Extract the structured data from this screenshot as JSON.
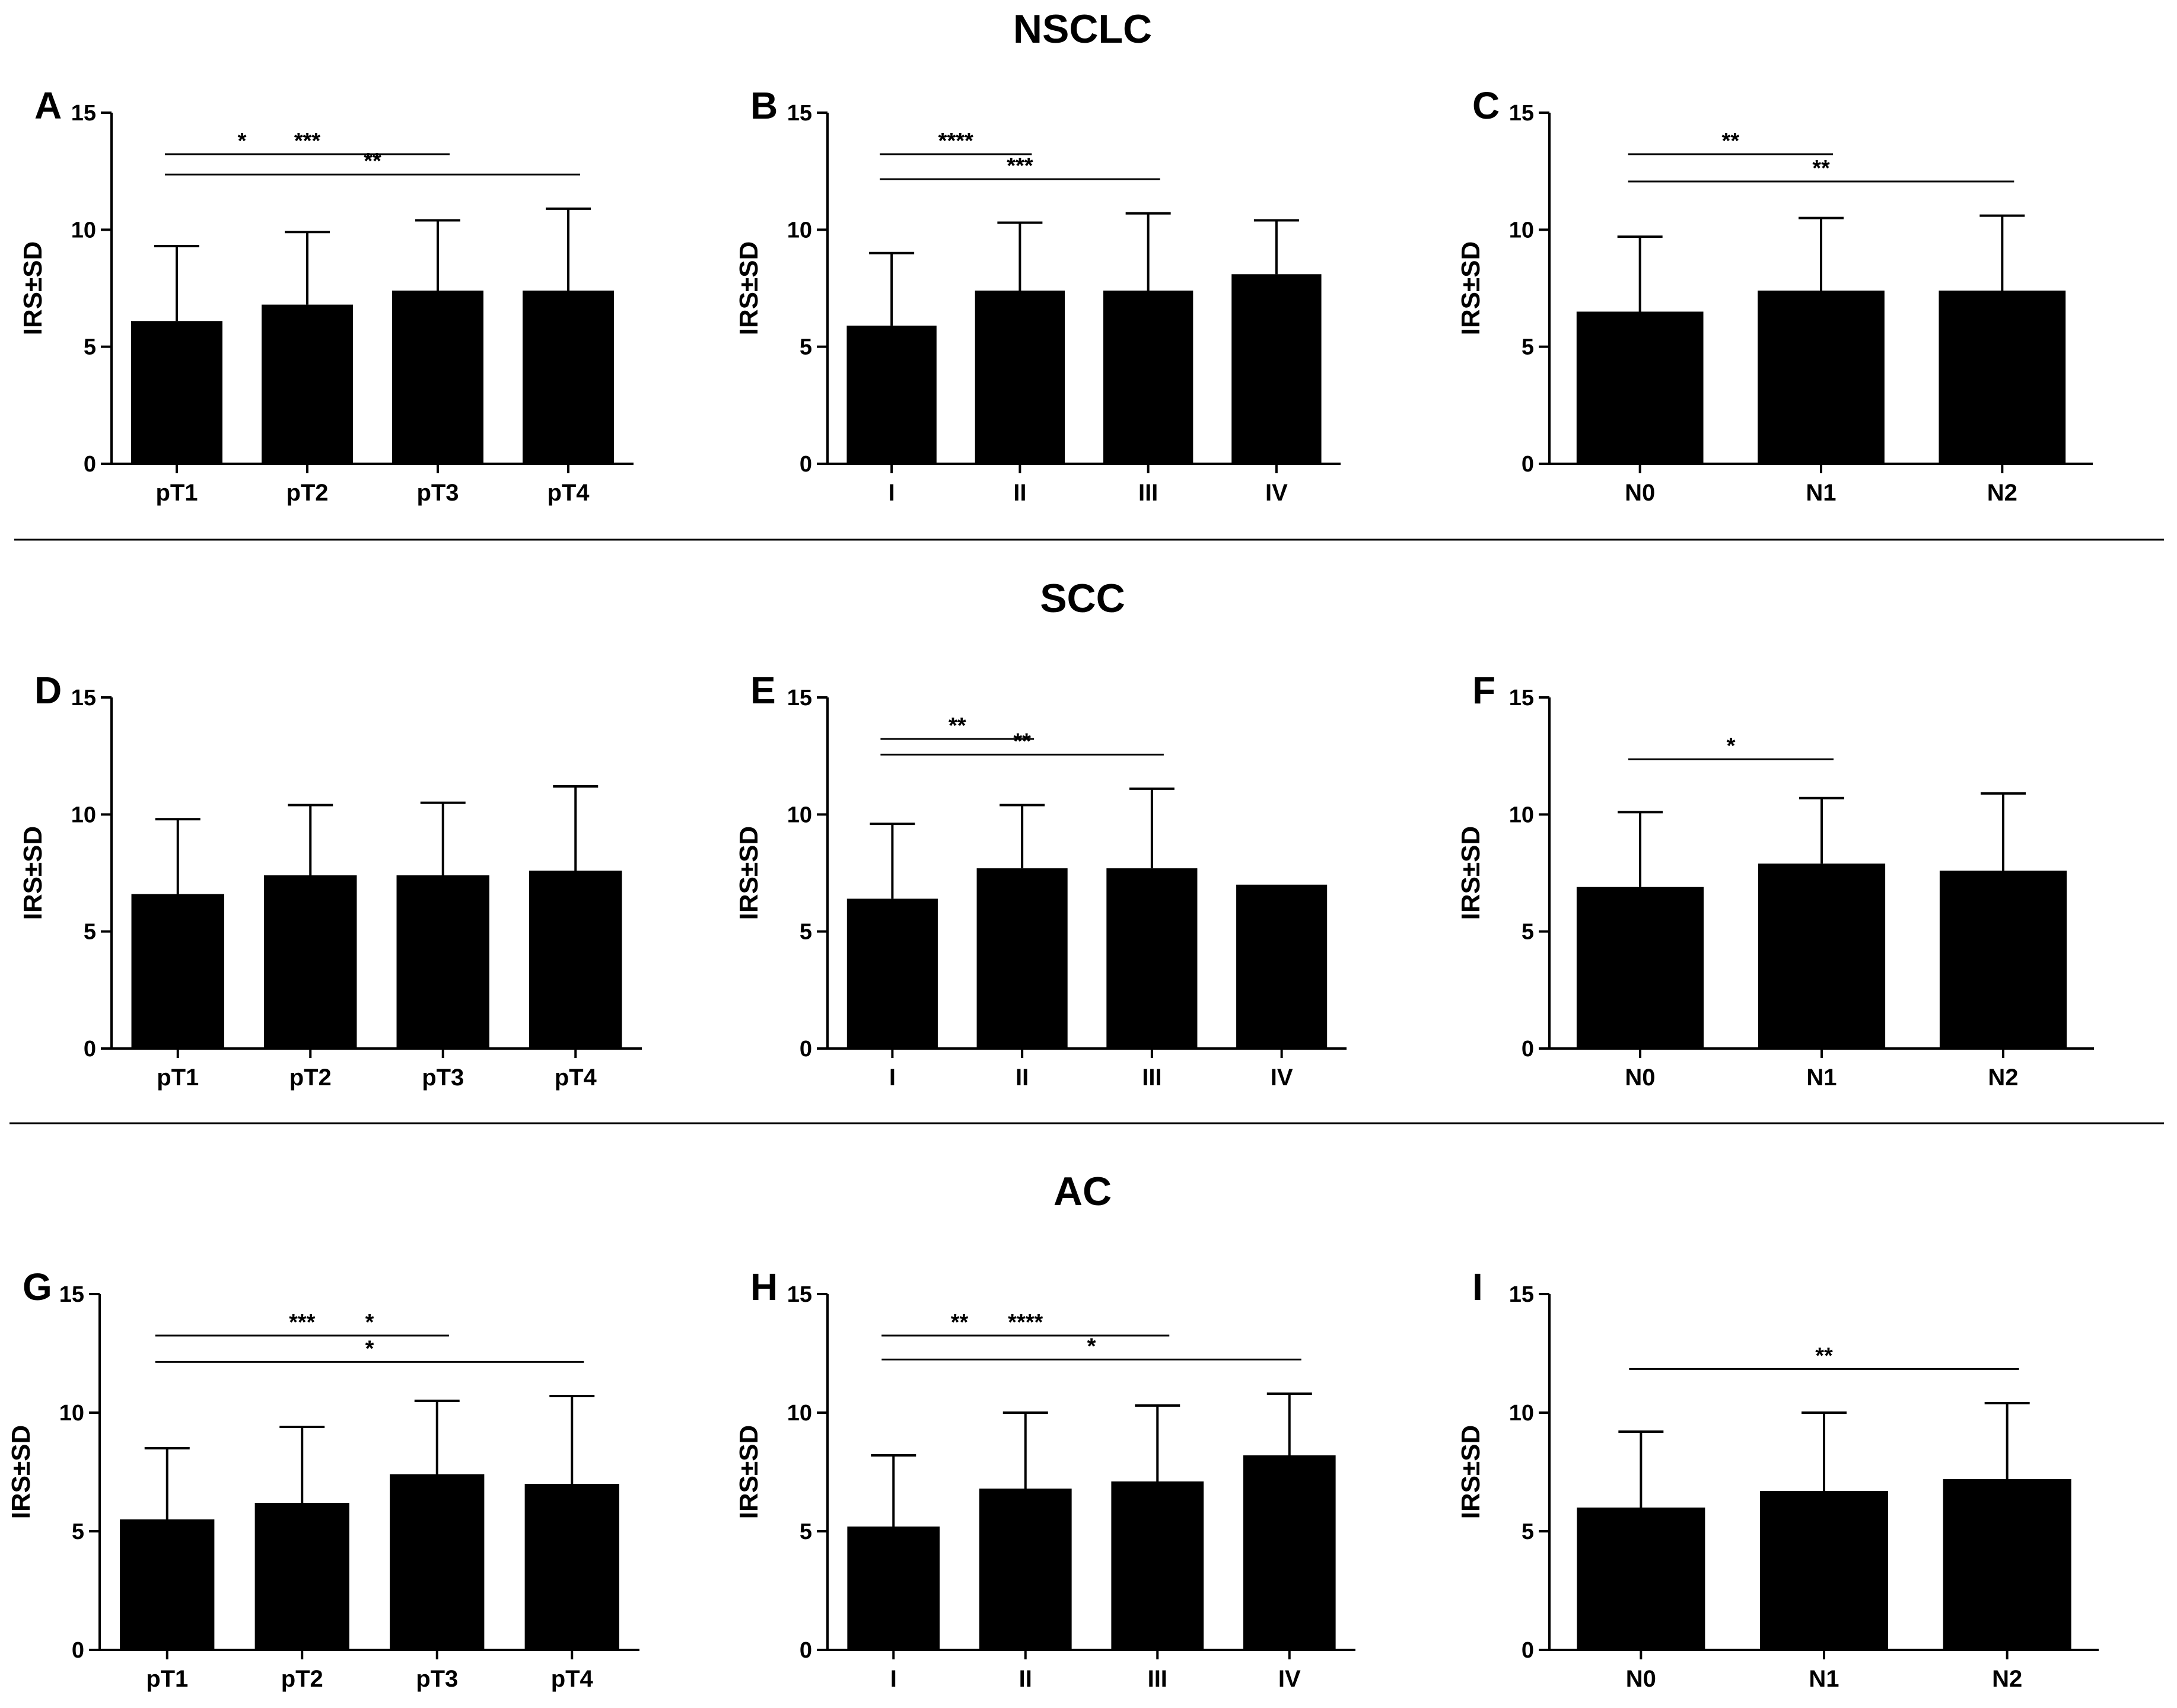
{
  "sections": [
    {
      "title": "NSCLC"
    },
    {
      "title": "SCC"
    },
    {
      "title": "AC"
    }
  ],
  "chart_data": [
    {
      "panel": "A",
      "section": "NSCLC",
      "type": "bar",
      "ylabel": "IRS±SD",
      "ylim": [
        0,
        15
      ],
      "yticks": [
        0,
        5,
        10,
        15
      ],
      "categories": [
        "pT1",
        "pT2",
        "pT3",
        "pT4"
      ],
      "values": [
        6.1,
        6.8,
        7.4,
        7.4
      ],
      "sd": [
        3.2,
        3.1,
        3.0,
        3.5
      ],
      "significance": [
        {
          "from": 0,
          "to": 1,
          "label": "*"
        },
        {
          "from": 0,
          "to": 2,
          "label": "***"
        },
        {
          "from": 0,
          "to": 3,
          "label": "**"
        }
      ]
    },
    {
      "panel": "B",
      "section": "NSCLC",
      "type": "bar",
      "ylabel": "IRS±SD",
      "ylim": [
        0,
        15
      ],
      "yticks": [
        0,
        5,
        10,
        15
      ],
      "categories": [
        "I",
        "II",
        "III",
        "IV"
      ],
      "values": [
        5.9,
        7.4,
        7.4,
        8.1
      ],
      "sd": [
        3.1,
        2.9,
        3.3,
        2.3
      ],
      "significance": [
        {
          "from": 0,
          "to": 1,
          "label": "****"
        },
        {
          "from": 0,
          "to": 2,
          "label": "***"
        }
      ]
    },
    {
      "panel": "C",
      "section": "NSCLC",
      "type": "bar",
      "ylabel": "IRS±SD",
      "ylim": [
        0,
        15
      ],
      "yticks": [
        0,
        5,
        10,
        15
      ],
      "categories": [
        "N0",
        "N1",
        "N2"
      ],
      "values": [
        6.5,
        7.4,
        7.4
      ],
      "sd": [
        3.2,
        3.1,
        3.2
      ],
      "significance": [
        {
          "from": 0,
          "to": 1,
          "label": "**"
        },
        {
          "from": 0,
          "to": 2,
          "label": "**"
        }
      ]
    },
    {
      "panel": "D",
      "section": "SCC",
      "type": "bar",
      "ylabel": "IRS±SD",
      "ylim": [
        0,
        15
      ],
      "yticks": [
        0,
        5,
        10,
        15
      ],
      "categories": [
        "pT1",
        "pT2",
        "pT3",
        "pT4"
      ],
      "values": [
        6.6,
        7.4,
        7.4,
        7.6
      ],
      "sd": [
        3.2,
        3.0,
        3.1,
        3.6
      ],
      "significance": []
    },
    {
      "panel": "E",
      "section": "SCC",
      "type": "bar",
      "ylabel": "IRS±SD",
      "ylim": [
        0,
        15
      ],
      "yticks": [
        0,
        5,
        10,
        15
      ],
      "categories": [
        "I",
        "II",
        "III",
        "IV"
      ],
      "values": [
        6.4,
        7.7,
        7.7,
        7.0
      ],
      "sd": [
        3.2,
        2.7,
        3.4,
        0
      ],
      "significance": [
        {
          "from": 0,
          "to": 1,
          "label": "**"
        },
        {
          "from": 0,
          "to": 2,
          "label": "**"
        }
      ]
    },
    {
      "panel": "F",
      "section": "SCC",
      "type": "bar",
      "ylabel": "IRS±SD",
      "ylim": [
        0,
        15
      ],
      "yticks": [
        0,
        5,
        10,
        15
      ],
      "categories": [
        "N0",
        "N1",
        "N2"
      ],
      "values": [
        6.9,
        7.9,
        7.6
      ],
      "sd": [
        3.2,
        2.8,
        3.3
      ],
      "significance": [
        {
          "from": 0,
          "to": 1,
          "label": "*"
        }
      ]
    },
    {
      "panel": "G",
      "section": "AC",
      "type": "bar",
      "ylabel": "IRS±SD",
      "ylim": [
        0,
        15
      ],
      "yticks": [
        0,
        5,
        10,
        15
      ],
      "categories": [
        "pT1",
        "pT2",
        "pT3",
        "pT4"
      ],
      "values": [
        5.5,
        6.2,
        7.4,
        7.0
      ],
      "sd": [
        3.0,
        3.2,
        3.1,
        3.7
      ],
      "significance": [
        {
          "from": 1,
          "to": 2,
          "label": "*"
        },
        {
          "from": 0,
          "to": 2,
          "label": "***"
        },
        {
          "from": 0,
          "to": 3,
          "label": "*"
        }
      ]
    },
    {
      "panel": "H",
      "section": "AC",
      "type": "bar",
      "ylabel": "IRS±SD",
      "ylim": [
        0,
        15
      ],
      "yticks": [
        0,
        5,
        10,
        15
      ],
      "categories": [
        "I",
        "II",
        "III",
        "IV"
      ],
      "values": [
        5.2,
        6.8,
        7.1,
        8.2
      ],
      "sd": [
        3.0,
        3.2,
        3.2,
        2.6
      ],
      "significance": [
        {
          "from": 0,
          "to": 1,
          "label": "**"
        },
        {
          "from": 0,
          "to": 2,
          "label": "****"
        },
        {
          "from": 0,
          "to": 3,
          "label": "*"
        }
      ]
    },
    {
      "panel": "I",
      "section": "AC",
      "type": "bar",
      "ylabel": "IRS±SD",
      "ylim": [
        0,
        15
      ],
      "yticks": [
        0,
        5,
        10,
        15
      ],
      "categories": [
        "N0",
        "N1",
        "N2"
      ],
      "values": [
        6.0,
        6.7,
        7.2
      ],
      "sd": [
        3.2,
        3.3,
        3.2
      ],
      "significance": [
        {
          "from": 0,
          "to": 2,
          "label": "**"
        }
      ]
    }
  ]
}
